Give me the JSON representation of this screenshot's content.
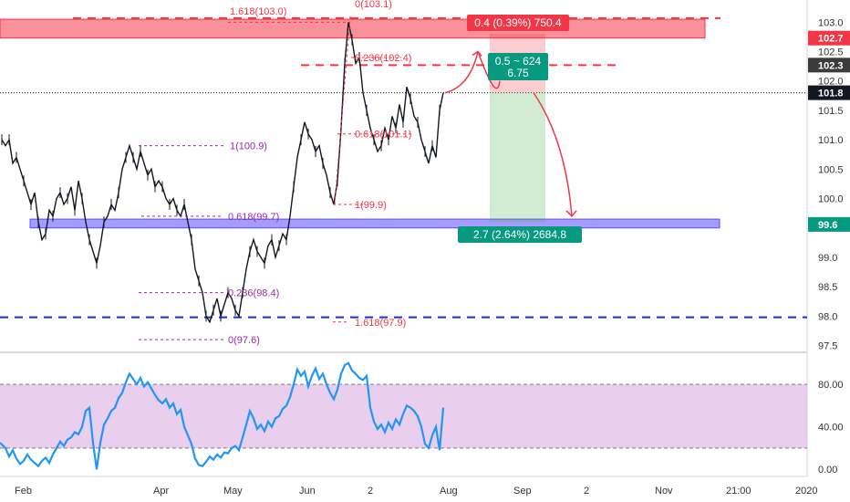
{
  "chart_data": [
    {
      "type": "line",
      "panel": "price",
      "x_ticks": [
        "Feb",
        "Apr",
        "May",
        "Jun",
        "2",
        "Aug",
        "Sep",
        "2",
        "Nov",
        "21:00",
        "2020"
      ],
      "y_ticks": [
        "103.0",
        "102.5",
        "102.0",
        "101.5",
        "101.0",
        "100.5",
        "100.0",
        "99.5",
        "99.0",
        "98.5",
        "98.0",
        "97.5"
      ],
      "ylim": [
        97.4,
        103.3
      ],
      "price_badges": [
        {
          "label": "102.7",
          "value": 102.73,
          "color": "#f23645"
        },
        {
          "label": "102.3",
          "value": 102.27,
          "color": "#3b3b3b"
        },
        {
          "label": "101.8",
          "value": 101.8,
          "color": "#131722"
        },
        {
          "label": "99.6",
          "value": 99.56,
          "color": "#089981"
        }
      ],
      "fib_labels": [
        {
          "text": "1.618(103.0)",
          "value": 103.0,
          "color": "#f23645"
        },
        {
          "text": "0(103.1)",
          "value": 103.1,
          "color": "#f23645"
        },
        {
          "text": "0.236(102.4)",
          "value": 102.4,
          "color": "#f23645"
        },
        {
          "text": "0.618(101.1)",
          "value": 101.1,
          "color": "#f23645"
        },
        {
          "text": "1(99.9)",
          "value": 99.9,
          "color": "#f23645"
        },
        {
          "text": "1.618(97.9)",
          "value": 97.9,
          "color": "#f23645"
        },
        {
          "text": "1(100.9)",
          "value": 100.9,
          "color": "#9c27b0"
        },
        {
          "text": "0.618(99.7)",
          "value": 99.7,
          "color": "#9c27b0"
        },
        {
          "text": "0.236(98.4)",
          "value": 98.4,
          "color": "#9c27b0"
        },
        {
          "text": "0(97.6)",
          "value": 97.6,
          "color": "#9c27b0"
        }
      ],
      "position_tool": {
        "stop_label": "0.4 (0.39%) 750.4",
        "entry_label_line1": "0.5 ~ 624",
        "entry_label_line2": "6.75",
        "target_label": "2.7 (2.64%) 2684.8",
        "entry": 101.8,
        "stop": 102.8,
        "target": 99.6
      },
      "zones": [
        {
          "name": "resistance",
          "from": 102.73,
          "to": 103.05,
          "color": "#f23645"
        },
        {
          "name": "support",
          "from": 99.5,
          "to": 99.65,
          "color": "#5b4bff"
        }
      ],
      "series": [
        {
          "color": "#131722",
          "points": [
            [
              2,
              101.0
            ],
            [
              6,
              100.9
            ],
            [
              10,
              101.0
            ],
            [
              14,
              100.6
            ],
            [
              18,
              100.7
            ],
            [
              22,
              100.5
            ],
            [
              26,
              100.3
            ],
            [
              30,
              100.1
            ],
            [
              34,
              99.9
            ],
            [
              38,
              100.1
            ],
            [
              42,
              99.6
            ],
            [
              46,
              99.3
            ],
            [
              50,
              99.4
            ],
            [
              54,
              99.8
            ],
            [
              58,
              99.7
            ],
            [
              62,
              100.0
            ],
            [
              66,
              100.1
            ],
            [
              70,
              99.9
            ],
            [
              74,
              100.0
            ],
            [
              78,
              100.2
            ],
            [
              82,
              99.8
            ],
            [
              86,
              100.3
            ],
            [
              90,
              100.0
            ],
            [
              94,
              99.6
            ],
            [
              98,
              99.3
            ],
            [
              102,
              99.1
            ],
            [
              106,
              98.9
            ],
            [
              110,
              99.2
            ],
            [
              114,
              99.6
            ],
            [
              118,
              99.7
            ],
            [
              122,
              99.9
            ],
            [
              126,
              99.8
            ],
            [
              130,
              100.1
            ],
            [
              134,
              100.5
            ],
            [
              138,
              100.7
            ],
            [
              142,
              100.9
            ],
            [
              146,
              100.7
            ],
            [
              150,
              100.5
            ],
            [
              154,
              100.8
            ],
            [
              158,
              100.6
            ],
            [
              162,
              100.4
            ],
            [
              166,
              100.5
            ],
            [
              170,
              100.2
            ],
            [
              174,
              100.3
            ],
            [
              178,
              100.2
            ],
            [
              182,
              100.0
            ],
            [
              186,
              99.9
            ],
            [
              190,
              100.0
            ],
            [
              194,
              99.8
            ],
            [
              198,
              99.7
            ],
            [
              202,
              99.9
            ],
            [
              206,
              99.6
            ],
            [
              210,
              99.3
            ],
            [
              214,
              98.8
            ],
            [
              218,
              98.6
            ],
            [
              222,
              98.4
            ],
            [
              226,
              98.0
            ],
            [
              230,
              97.9
            ],
            [
              234,
              98.1
            ],
            [
              238,
              98.3
            ],
            [
              242,
              98.0
            ],
            [
              246,
              98.2
            ],
            [
              250,
              98.4
            ],
            [
              254,
              98.3
            ],
            [
              258,
              98.1
            ],
            [
              262,
              98.0
            ],
            [
              266,
              98.4
            ],
            [
              270,
              98.8
            ],
            [
              274,
              99.1
            ],
            [
              278,
              99.3
            ],
            [
              282,
              99.1
            ],
            [
              286,
              99.0
            ],
            [
              290,
              98.9
            ],
            [
              294,
              99.2
            ],
            [
              298,
              99.3
            ],
            [
              302,
              99.0
            ],
            [
              306,
              99.2
            ],
            [
              310,
              99.4
            ],
            [
              314,
              99.3
            ],
            [
              318,
              99.7
            ],
            [
              322,
              100.2
            ],
            [
              326,
              100.7
            ],
            [
              330,
              101.0
            ],
            [
              334,
              101.3
            ],
            [
              338,
              101.1
            ],
            [
              342,
              101.0
            ],
            [
              346,
              100.8
            ],
            [
              350,
              100.9
            ],
            [
              354,
              100.6
            ],
            [
              358,
              100.4
            ],
            [
              362,
              100.1
            ],
            [
              366,
              99.9
            ],
            [
              370,
              100.3
            ],
            [
              374,
              101.2
            ],
            [
              378,
              102.3
            ],
            [
              382,
              103.0
            ],
            [
              386,
              102.7
            ],
            [
              390,
              102.3
            ],
            [
              394,
              102.4
            ],
            [
              398,
              101.8
            ],
            [
              402,
              101.5
            ],
            [
              406,
              101.2
            ],
            [
              410,
              101.0
            ],
            [
              414,
              100.8
            ],
            [
              418,
              100.9
            ],
            [
              422,
              101.2
            ],
            [
              426,
              101.0
            ],
            [
              430,
              101.4
            ],
            [
              434,
              101.2
            ],
            [
              438,
              101.6
            ],
            [
              442,
              101.3
            ],
            [
              446,
              101.9
            ],
            [
              450,
              101.7
            ],
            [
              454,
              101.4
            ],
            [
              458,
              101.3
            ],
            [
              462,
              101.0
            ],
            [
              466,
              100.8
            ],
            [
              470,
              100.6
            ],
            [
              474,
              100.9
            ],
            [
              478,
              100.7
            ],
            [
              482,
              101.5
            ],
            [
              486,
              101.8
            ]
          ]
        }
      ]
    },
    {
      "type": "line",
      "panel": "oscillator",
      "y_ticks": [
        "80.00",
        "40.00",
        "0.00"
      ],
      "ylim": [
        -5,
        105
      ],
      "band": [
        20,
        80
      ],
      "series": [
        {
          "color": "#2196f3",
          "points": [
            [
              0,
              25
            ],
            [
              6,
              20
            ],
            [
              10,
              12
            ],
            [
              14,
              18
            ],
            [
              18,
              10
            ],
            [
              22,
              5
            ],
            [
              26,
              8
            ],
            [
              30,
              14
            ],
            [
              34,
              9
            ],
            [
              38,
              6
            ],
            [
              42,
              3
            ],
            [
              46,
              8
            ],
            [
              50,
              11
            ],
            [
              54,
              6
            ],
            [
              58,
              14
            ],
            [
              62,
              20
            ],
            [
              66,
              26
            ],
            [
              70,
              22
            ],
            [
              74,
              28
            ],
            [
              78,
              30
            ],
            [
              82,
              35
            ],
            [
              86,
              33
            ],
            [
              90,
              40
            ],
            [
              94,
              55
            ],
            [
              98,
              58
            ],
            [
              102,
              25
            ],
            [
              106,
              0
            ],
            [
              110,
              25
            ],
            [
              114,
              42
            ],
            [
              118,
              48
            ],
            [
              122,
              55
            ],
            [
              126,
              58
            ],
            [
              130,
              67
            ],
            [
              134,
              72
            ],
            [
              138,
              82
            ],
            [
              142,
              90
            ],
            [
              146,
              85
            ],
            [
              150,
              80
            ],
            [
              154,
              86
            ],
            [
              158,
              78
            ],
            [
              162,
              82
            ],
            [
              166,
              76
            ],
            [
              170,
              70
            ],
            [
              174,
              65
            ],
            [
              178,
              62
            ],
            [
              182,
              66
            ],
            [
              186,
              58
            ],
            [
              190,
              62
            ],
            [
              194,
              52
            ],
            [
              198,
              56
            ],
            [
              202,
              40
            ],
            [
              206,
              32
            ],
            [
              210,
              24
            ],
            [
              214,
              10
            ],
            [
              218,
              4
            ],
            [
              222,
              3
            ],
            [
              226,
              7
            ],
            [
              230,
              12
            ],
            [
              234,
              9
            ],
            [
              238,
              14
            ],
            [
              242,
              11
            ],
            [
              246,
              16
            ],
            [
              250,
              15
            ],
            [
              254,
              20
            ],
            [
              258,
              22
            ],
            [
              262,
              18
            ],
            [
              266,
              30
            ],
            [
              270,
              42
            ],
            [
              274,
              55
            ],
            [
              278,
              48
            ],
            [
              282,
              38
            ],
            [
              286,
              42
            ],
            [
              290,
              36
            ],
            [
              294,
              45
            ],
            [
              298,
              40
            ],
            [
              302,
              48
            ],
            [
              306,
              50
            ],
            [
              310,
              57
            ],
            [
              314,
              60
            ],
            [
              318,
              68
            ],
            [
              322,
              80
            ],
            [
              326,
              94
            ],
            [
              330,
              88
            ],
            [
              334,
              92
            ],
            [
              338,
              78
            ],
            [
              342,
              88
            ],
            [
              346,
              95
            ],
            [
              350,
              85
            ],
            [
              354,
              90
            ],
            [
              358,
              80
            ],
            [
              362,
              72
            ],
            [
              366,
              66
            ],
            [
              370,
              75
            ],
            [
              374,
              90
            ],
            [
              378,
              98
            ],
            [
              382,
              100
            ],
            [
              386,
              93
            ],
            [
              390,
              90
            ],
            [
              394,
              86
            ],
            [
              398,
              84
            ],
            [
              402,
              88
            ],
            [
              406,
              58
            ],
            [
              410,
              45
            ],
            [
              414,
              38
            ],
            [
              418,
              42
            ],
            [
              422,
              35
            ],
            [
              426,
              44
            ],
            [
              430,
              38
            ],
            [
              434,
              47
            ],
            [
              438,
              42
            ],
            [
              442,
              52
            ],
            [
              446,
              60
            ],
            [
              450,
              58
            ],
            [
              454,
              55
            ],
            [
              458,
              50
            ],
            [
              462,
              40
            ],
            [
              466,
              24
            ],
            [
              470,
              20
            ],
            [
              474,
              32
            ],
            [
              478,
              40
            ],
            [
              482,
              18
            ],
            [
              486,
              58
            ]
          ]
        }
      ]
    }
  ]
}
